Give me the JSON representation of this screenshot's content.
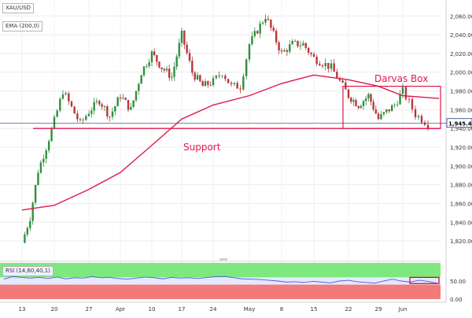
{
  "header": {
    "symbol": "XAU/USD",
    "ema_label": "EMA (200,0)",
    "rsi_label": "RSI (14,60,40,1)"
  },
  "annotations": {
    "darvas_box": "Darvas Box",
    "support": "Support"
  },
  "price_axis": {
    "ticks": [
      "2,060.00",
      "2,040.00",
      "2,020.00",
      "2,000.00",
      "1,980.00",
      "1,960.00",
      "1,940.00",
      "1,920.00",
      "1,900.00",
      "1,880.00",
      "1,860.00",
      "1,840.00",
      "1,820.00"
    ],
    "last_price_label": "1,945.45"
  },
  "rsi_axis": {
    "ticks": [
      "50.00",
      "0.00"
    ]
  },
  "time_axis": {
    "labels": [
      "13",
      "20",
      "27",
      "Apr",
      "10",
      "17",
      "24",
      "May",
      "8",
      "15",
      "22",
      "29",
      "Jun"
    ]
  },
  "colors": {
    "candle_up": "#2f8f3e",
    "candle_down": "#b8353a",
    "ema": "#e0184e",
    "annotation": "#e0184e",
    "rsi_line": "#4a5fd6",
    "rsi_upper_zone": "#7ee87e",
    "rsi_lower_zone": "#f27a7a",
    "last_price_line": "#1f3c88"
  },
  "chart_data": {
    "type": "candlestick",
    "symbol": "XAU/USD",
    "indicators": [
      "EMA (200,0)",
      "RSI (14,60,40,1)"
    ],
    "x": [
      "13",
      "20",
      "27",
      "Apr",
      "10",
      "17",
      "24",
      "May",
      "8",
      "15",
      "22",
      "29",
      "Jun"
    ],
    "ylim": [
      1810,
      2072
    ],
    "last_price": 1945.45,
    "close_path": [
      {
        "x": "13",
        "y": 1818
      },
      {
        "x": "13",
        "y": 1845
      },
      {
        "x": "13",
        "y": 1895
      },
      {
        "x": "13",
        "y": 1920
      },
      {
        "x": "20",
        "y": 1948
      },
      {
        "x": "20",
        "y": 1980
      },
      {
        "x": "20",
        "y": 1962
      },
      {
        "x": "20",
        "y": 1945
      },
      {
        "x": "27",
        "y": 1958
      },
      {
        "x": "27",
        "y": 1970
      },
      {
        "x": "27",
        "y": 1953
      },
      {
        "x": "Apr",
        "y": 1975
      },
      {
        "x": "Apr",
        "y": 1960
      },
      {
        "x": "Apr",
        "y": 2000
      },
      {
        "x": "10",
        "y": 2020
      },
      {
        "x": "10",
        "y": 2005
      },
      {
        "x": "10",
        "y": 1995
      },
      {
        "x": "17",
        "y": 2040
      },
      {
        "x": "17",
        "y": 2000
      },
      {
        "x": "17",
        "y": 1985
      },
      {
        "x": "24",
        "y": 1990
      },
      {
        "x": "24",
        "y": 2000
      },
      {
        "x": "24",
        "y": 1985
      },
      {
        "x": "24",
        "y": 1985
      },
      {
        "x": "May",
        "y": 2030
      },
      {
        "x": "May",
        "y": 2060
      },
      {
        "x": "8",
        "y": 2020
      },
      {
        "x": "8",
        "y": 2030
      },
      {
        "x": "8",
        "y": 2030
      },
      {
        "x": "15",
        "y": 2015
      },
      {
        "x": "15",
        "y": 2005
      },
      {
        "x": "22",
        "y": 1975
      },
      {
        "x": "22",
        "y": 1965
      },
      {
        "x": "22",
        "y": 1975
      },
      {
        "x": "29",
        "y": 1950
      },
      {
        "x": "29",
        "y": 1958
      },
      {
        "x": "29",
        "y": 1965
      },
      {
        "x": "Jun",
        "y": 1980
      },
      {
        "x": "Jun",
        "y": 1955
      },
      {
        "x": "Jun",
        "y": 1945
      }
    ],
    "ema_200": [
      {
        "x": "13",
        "y": 1853
      },
      {
        "x": "20",
        "y": 1858
      },
      {
        "x": "27",
        "y": 1875
      },
      {
        "x": "Apr",
        "y": 1893
      },
      {
        "x": "10",
        "y": 1922
      },
      {
        "x": "17",
        "y": 1950
      },
      {
        "x": "24",
        "y": 1965
      },
      {
        "x": "May",
        "y": 1975
      },
      {
        "x": "8",
        "y": 1988
      },
      {
        "x": "15",
        "y": 1997
      },
      {
        "x": "22",
        "y": 1992
      },
      {
        "x": "29",
        "y": 1985
      },
      {
        "x": "Jun",
        "y": 1975
      }
    ],
    "support_level": 1940,
    "darvas_box": {
      "x_start": "22",
      "x_end": "Jun",
      "high": 1985,
      "low": 1940
    },
    "rsi": {
      "ylim": [
        0,
        100
      ],
      "upper": 60,
      "lower": 40,
      "values": [
        55,
        62,
        60,
        58,
        60,
        57,
        61,
        56,
        59,
        58,
        62,
        59,
        60,
        57,
        55,
        58,
        61,
        59,
        56,
        60,
        58,
        59,
        57,
        60,
        62,
        63,
        59,
        56,
        55,
        54,
        52,
        50,
        47,
        48,
        46,
        49,
        47,
        45,
        50,
        52,
        48,
        46,
        44,
        50,
        55,
        50,
        47,
        52,
        49,
        44
      ]
    }
  }
}
